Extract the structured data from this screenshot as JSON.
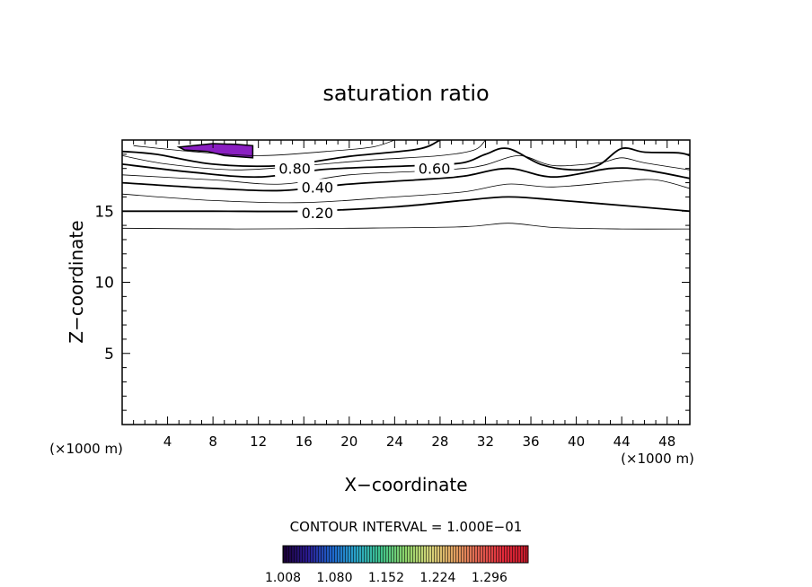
{
  "chart_data": {
    "type": "contour",
    "title": "saturation ratio",
    "xlabel": "X−coordinate",
    "ylabel": "Z−coordinate",
    "x_unit_left": "(×1000 m)",
    "x_unit_right": "(×1000 m)",
    "xlim": [
      0,
      50
    ],
    "ylim": [
      0,
      20
    ],
    "x_ticks": [
      "4",
      "8",
      "12",
      "16",
      "20",
      "24",
      "28",
      "32",
      "36",
      "40",
      "44",
      "48"
    ],
    "y_ticks": [
      "5",
      "10",
      "15"
    ],
    "contour_interval_text": "CONTOUR INTERVAL = 1.000E−01",
    "contour_labels": [
      {
        "text": "0.80",
        "x": 15.2,
        "y": 18.0
      },
      {
        "text": "0.60",
        "x": 27.5,
        "y": 18.0
      },
      {
        "text": "0.40",
        "x": 17.2,
        "y": 16.7
      },
      {
        "text": "0.20",
        "x": 17.2,
        "y": 14.9
      }
    ],
    "contours": [
      {
        "level": 0.1,
        "points": [
          [
            0,
            13.8
          ],
          [
            10,
            13.75
          ],
          [
            20,
            13.8
          ],
          [
            30,
            13.9
          ],
          [
            34,
            14.15
          ],
          [
            38,
            13.85
          ],
          [
            44,
            13.75
          ],
          [
            50,
            13.75
          ]
        ]
      },
      {
        "level": 0.2,
        "points": [
          [
            0,
            15.0
          ],
          [
            8,
            15.0
          ],
          [
            16,
            15.0
          ],
          [
            24,
            15.3
          ],
          [
            30,
            15.75
          ],
          [
            34,
            16.0
          ],
          [
            38,
            15.8
          ],
          [
            44,
            15.4
          ],
          [
            50,
            15.0
          ]
        ]
      },
      {
        "level": 0.3,
        "points": [
          [
            0,
            16.2
          ],
          [
            8,
            15.75
          ],
          [
            16,
            15.6
          ],
          [
            24,
            16.0
          ],
          [
            30,
            16.35
          ],
          [
            34,
            16.9
          ],
          [
            38,
            16.7
          ],
          [
            44,
            17.1
          ],
          [
            47,
            17.2
          ],
          [
            50,
            16.6
          ]
        ]
      },
      {
        "level": 0.4,
        "points": [
          [
            0,
            17.0
          ],
          [
            8,
            16.6
          ],
          [
            14,
            16.45
          ],
          [
            20,
            16.9
          ],
          [
            26,
            17.2
          ],
          [
            30,
            17.45
          ],
          [
            34,
            18.0
          ],
          [
            38,
            17.4
          ],
          [
            43,
            18.0
          ],
          [
            46,
            17.9
          ],
          [
            50,
            17.3
          ]
        ]
      },
      {
        "level": 0.5,
        "points": [
          [
            0,
            17.55
          ],
          [
            8,
            17.2
          ],
          [
            14,
            16.9
          ],
          [
            20,
            17.55
          ],
          [
            26,
            17.8
          ],
          [
            30,
            18.0
          ],
          [
            32,
            18.25
          ],
          [
            35,
            18.9
          ],
          [
            38,
            18.2
          ],
          [
            42,
            18.4
          ],
          [
            44,
            18.75
          ],
          [
            46,
            18.4
          ],
          [
            50,
            17.9
          ]
        ]
      },
      {
        "level": 0.6,
        "points": [
          [
            0,
            18.3
          ],
          [
            6,
            17.75
          ],
          [
            12,
            17.4
          ],
          [
            18,
            17.95
          ],
          [
            26,
            18.2
          ],
          [
            30,
            18.4
          ],
          [
            32,
            19.0
          ],
          [
            34,
            19.4
          ],
          [
            37,
            18.25
          ],
          [
            40,
            17.9
          ],
          [
            42,
            18.25
          ],
          [
            44,
            19.4
          ],
          [
            46,
            19.15
          ],
          [
            49,
            19.1
          ],
          [
            50,
            18.9
          ]
        ]
      },
      {
        "level": 0.7,
        "points": [
          [
            0,
            18.9
          ],
          [
            4,
            18.3
          ],
          [
            10,
            17.9
          ],
          [
            16,
            18.2
          ],
          [
            22,
            18.6
          ],
          [
            28,
            18.9
          ],
          [
            31,
            19.3
          ],
          [
            32,
            20.0
          ]
        ]
      },
      {
        "level": 0.8,
        "points": [
          [
            0,
            19.2
          ],
          [
            3,
            19.0
          ],
          [
            8,
            18.3
          ],
          [
            14,
            18.2
          ],
          [
            20,
            18.85
          ],
          [
            26,
            19.35
          ],
          [
            28,
            20.0
          ]
        ]
      },
      {
        "level": 0.9,
        "points": [
          [
            1,
            19.6
          ],
          [
            6,
            19.2
          ],
          [
            12,
            18.9
          ],
          [
            18,
            19.2
          ],
          [
            22,
            19.5
          ],
          [
            24,
            20.0
          ]
        ]
      }
    ],
    "highlight_region": {
      "level": 1.008,
      "color": "#8a1fc2",
      "points": [
        [
          5.0,
          19.5
        ],
        [
          8.0,
          19.75
        ],
        [
          10.0,
          19.7
        ],
        [
          11.5,
          19.6
        ],
        [
          11.5,
          18.75
        ],
        [
          9.0,
          18.9
        ],
        [
          7.5,
          19.2
        ],
        [
          5.5,
          19.3
        ]
      ]
    },
    "colorbar": {
      "ticks": [
        "1.008",
        "1.080",
        "1.152",
        "1.224",
        "1.296"
      ],
      "range": [
        1.008,
        1.35
      ],
      "colors": [
        "#1a0033",
        "#2a1a8f",
        "#1f66cc",
        "#2aa6c8",
        "#3fc28a",
        "#8ed46a",
        "#d6d47a",
        "#e0a060",
        "#e06050",
        "#e02a3a",
        "#c41a2a"
      ]
    }
  }
}
